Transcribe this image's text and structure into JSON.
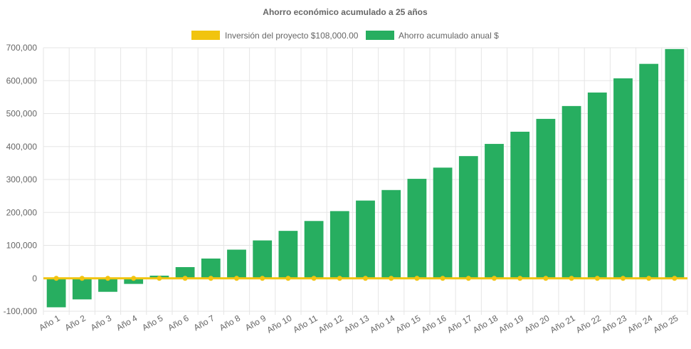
{
  "chart_data": {
    "type": "bar",
    "title": "Ahorro económico acumulado a 25 años",
    "categories": [
      "Año 1",
      "Año 2",
      "Año 3",
      "Año 4",
      "Año 5",
      "Año 6",
      "Año 7",
      "Año 8",
      "Año 9",
      "Año 10",
      "Año 11",
      "Año 12",
      "Año 13",
      "Año 14",
      "Año 15",
      "Año 16",
      "Año 17",
      "Año 18",
      "Año 19",
      "Año 20",
      "Año 21",
      "Año 22",
      "Año 23",
      "Año 24",
      "Año 25"
    ],
    "ylim": [
      -100000,
      700000
    ],
    "yticks": [
      -100000,
      0,
      100000,
      200000,
      300000,
      400000,
      500000,
      600000,
      700000
    ],
    "ytick_labels": [
      "-100,000",
      "0",
      "100,000",
      "200,000",
      "300,000",
      "400,000",
      "500,000",
      "600,000",
      "700,000"
    ],
    "legend_position": "top-center",
    "grid": true,
    "series": [
      {
        "name": "Inversión del proyecto $108,000.00",
        "type": "line",
        "color": "#f1c40f",
        "values": [
          0,
          0,
          0,
          0,
          0,
          0,
          0,
          0,
          0,
          0,
          0,
          0,
          0,
          0,
          0,
          0,
          0,
          0,
          0,
          0,
          0,
          0,
          0,
          0,
          0
        ]
      },
      {
        "name": "Ahorro acumulado anual $",
        "type": "bar",
        "color": "#27ae60",
        "values": [
          -88000,
          -64000,
          -41000,
          -17000,
          8000,
          34000,
          60000,
          87000,
          115000,
          144000,
          174000,
          204000,
          236000,
          268000,
          302000,
          336000,
          371000,
          408000,
          445000,
          484000,
          523000,
          564000,
          607000,
          651000,
          696000
        ]
      }
    ]
  }
}
